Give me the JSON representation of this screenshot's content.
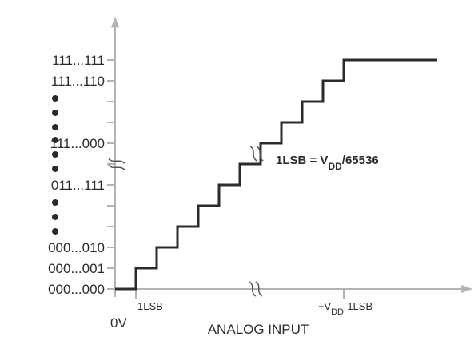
{
  "chart_data": {
    "type": "line",
    "title": "",
    "xlabel": "ANALOG INPUT",
    "ylabel": "",
    "y_tick_labels": [
      {
        "code": 0,
        "label": "000...000"
      },
      {
        "code": 1,
        "label": "000...001"
      },
      {
        "code": 2,
        "label": "000...010"
      },
      {
        "code": 5,
        "label": "011...111"
      },
      {
        "code": 7,
        "label": "111...000"
      },
      {
        "code": 10,
        "label": "111...110"
      },
      {
        "code": 11,
        "label": "111...111"
      }
    ],
    "y_dots_after_codes": [
      2,
      5,
      7
    ],
    "x_tick_labels": [
      {
        "x": 0,
        "label": "0V"
      },
      {
        "x": 1,
        "label": "1LSB"
      },
      {
        "x": 11,
        "label": "+V",
        "sub": "DD",
        "tail": "-1LSB"
      }
    ],
    "annotation": {
      "text": "1LSB = V",
      "sub": "DD",
      "tail": "/65536",
      "anchor_step": 7
    },
    "series": [
      {
        "x": [
          0,
          1,
          1,
          2,
          2,
          3,
          3,
          4,
          4,
          5,
          5,
          6,
          6,
          7,
          7,
          8,
          8,
          9,
          9,
          10,
          10,
          11,
          11,
          15.5
        ],
        "y": [
          0,
          0,
          1,
          1,
          2,
          2,
          3,
          3,
          4,
          4,
          5,
          5,
          6,
          6,
          7,
          7,
          8,
          8,
          9,
          9,
          10,
          10,
          11,
          11
        ]
      }
    ],
    "axis_breaks": {
      "y_at_code": 5.95,
      "x_at_step": 6.8,
      "stair_at_step": 6.85
    },
    "xlim": [
      0,
      17.2
    ],
    "ylim": [
      0,
      13.1
    ],
    "colors": {
      "axis": "#b3b3b3",
      "line": "#2b2b2b"
    }
  }
}
